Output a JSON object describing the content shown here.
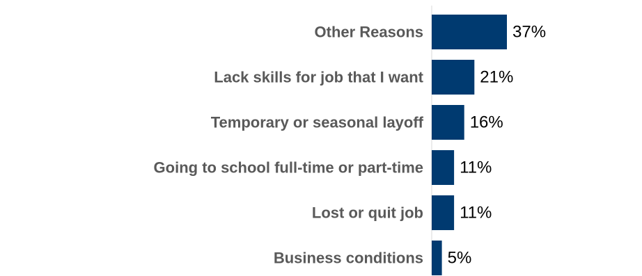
{
  "chart_data": {
    "type": "bar",
    "orientation": "horizontal",
    "categories": [
      "Other Reasons",
      "Lack skills for job that I want",
      "Temporary or seasonal layoff",
      "Going to school full-time or part-time",
      "Lost or quit job",
      "Business conditions"
    ],
    "values": [
      37,
      21,
      16,
      11,
      11,
      5
    ],
    "value_labels": [
      "37%",
      "21%",
      "16%",
      "11%",
      "11%",
      "5%"
    ],
    "xlim": [
      0,
      100
    ],
    "grid": false,
    "legend": "none",
    "title": "",
    "xlabel": "",
    "ylabel": ""
  },
  "colors": {
    "bar": "#003a70",
    "category_text": "#595959",
    "value_text": "#000000",
    "axis": "#d9d9d9"
  }
}
